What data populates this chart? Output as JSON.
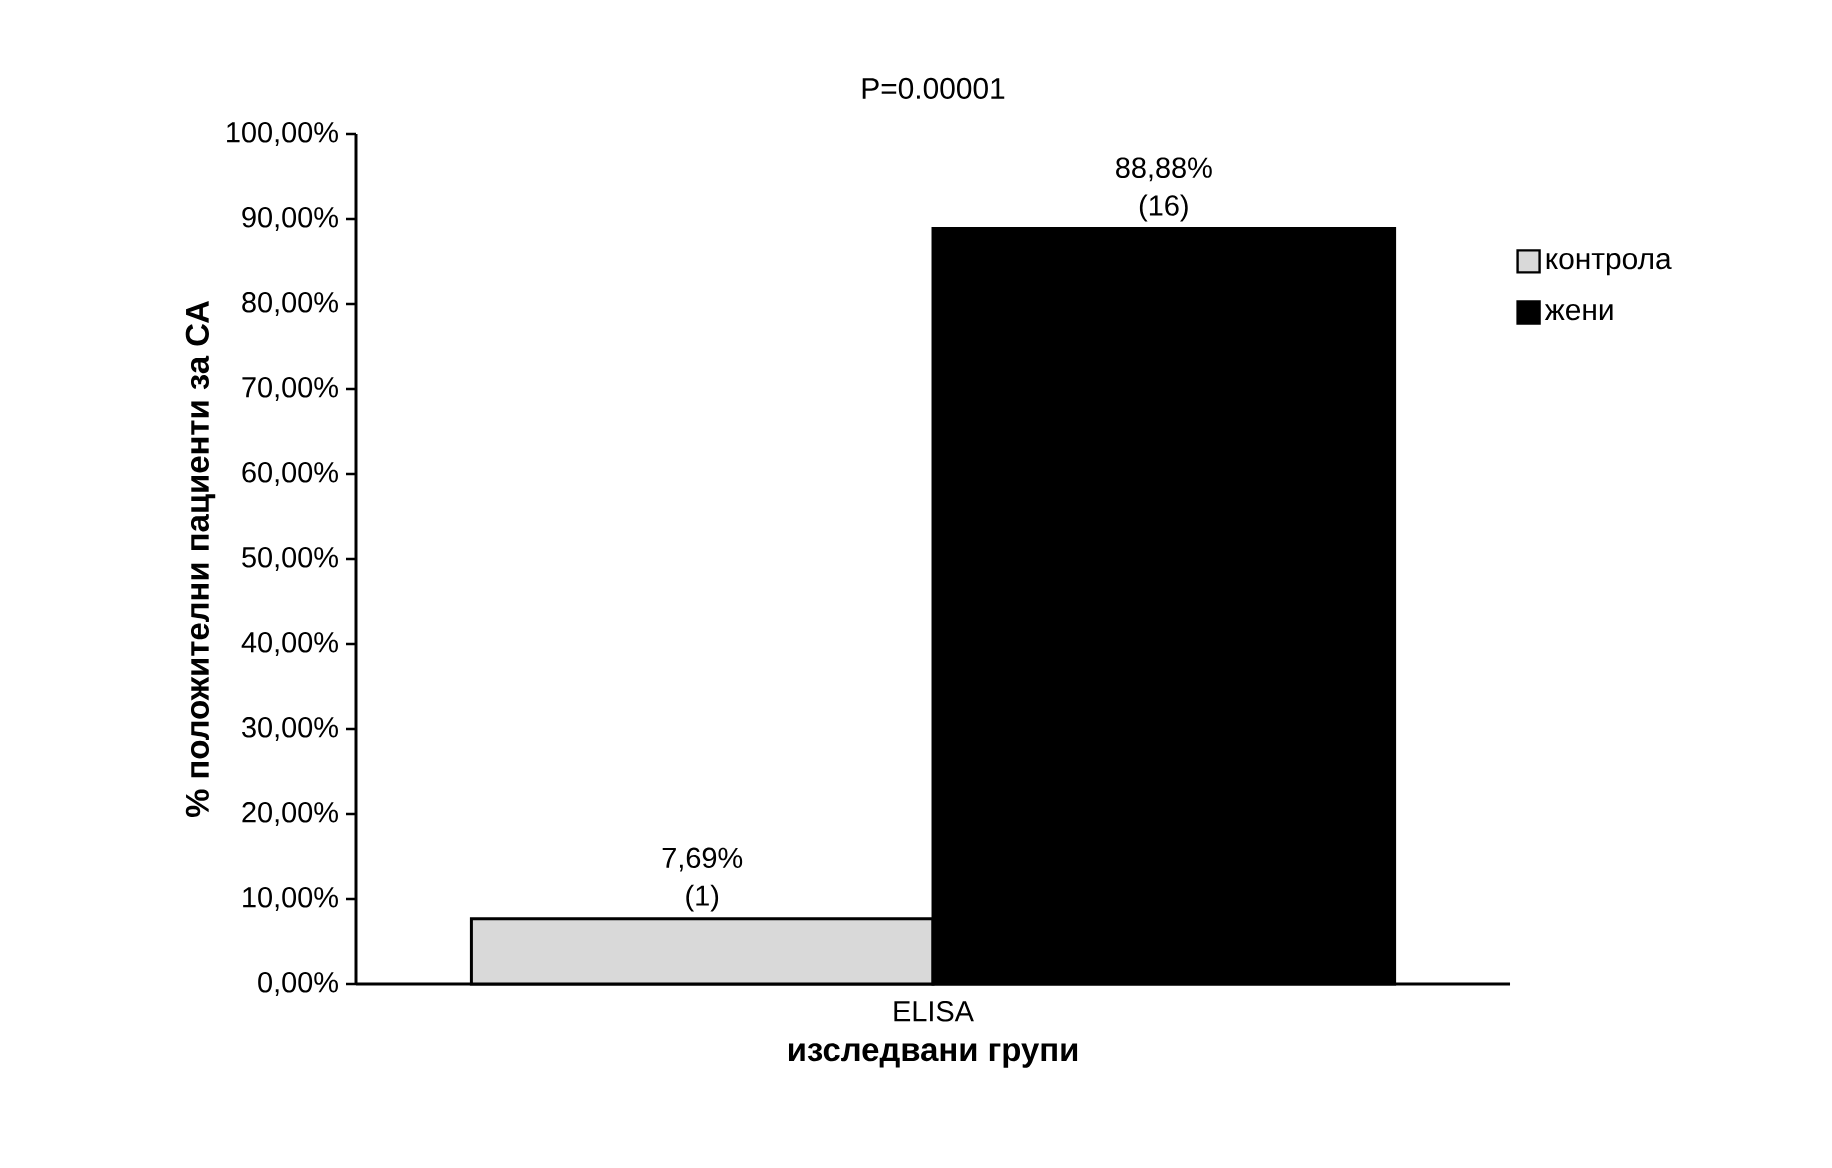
{
  "chart_data": {
    "type": "bar",
    "title": "P=0.00001",
    "xlabel": "изследвани групи",
    "ylabel": "% положителни пациенти за СА",
    "categories": [
      "ELISA"
    ],
    "series": [
      {
        "name": "контрола",
        "color": "#d9d9d9",
        "values": [
          7.69
        ],
        "value_labels": [
          "7,69% (1)"
        ]
      },
      {
        "name": "жени",
        "color": "#000000",
        "values": [
          88.88
        ],
        "value_labels": [
          "88,88% (16)"
        ]
      }
    ],
    "ylim": [
      0,
      100
    ],
    "yticks": [
      {
        "value": 0,
        "label": "0,00%"
      },
      {
        "value": 10,
        "label": "10,00%"
      },
      {
        "value": 20,
        "label": "20,00%"
      },
      {
        "value": 30,
        "label": "30,00%"
      },
      {
        "value": 40,
        "label": "40,00%"
      },
      {
        "value": 50,
        "label": "50,00%"
      },
      {
        "value": 60,
        "label": "60,00%"
      },
      {
        "value": 70,
        "label": "70,00%"
      },
      {
        "value": 80,
        "label": "80,00%"
      },
      {
        "value": 90,
        "label": "90,00%"
      },
      {
        "value": 100,
        "label": "100,00%"
      }
    ],
    "grid": false,
    "legend": "right"
  }
}
